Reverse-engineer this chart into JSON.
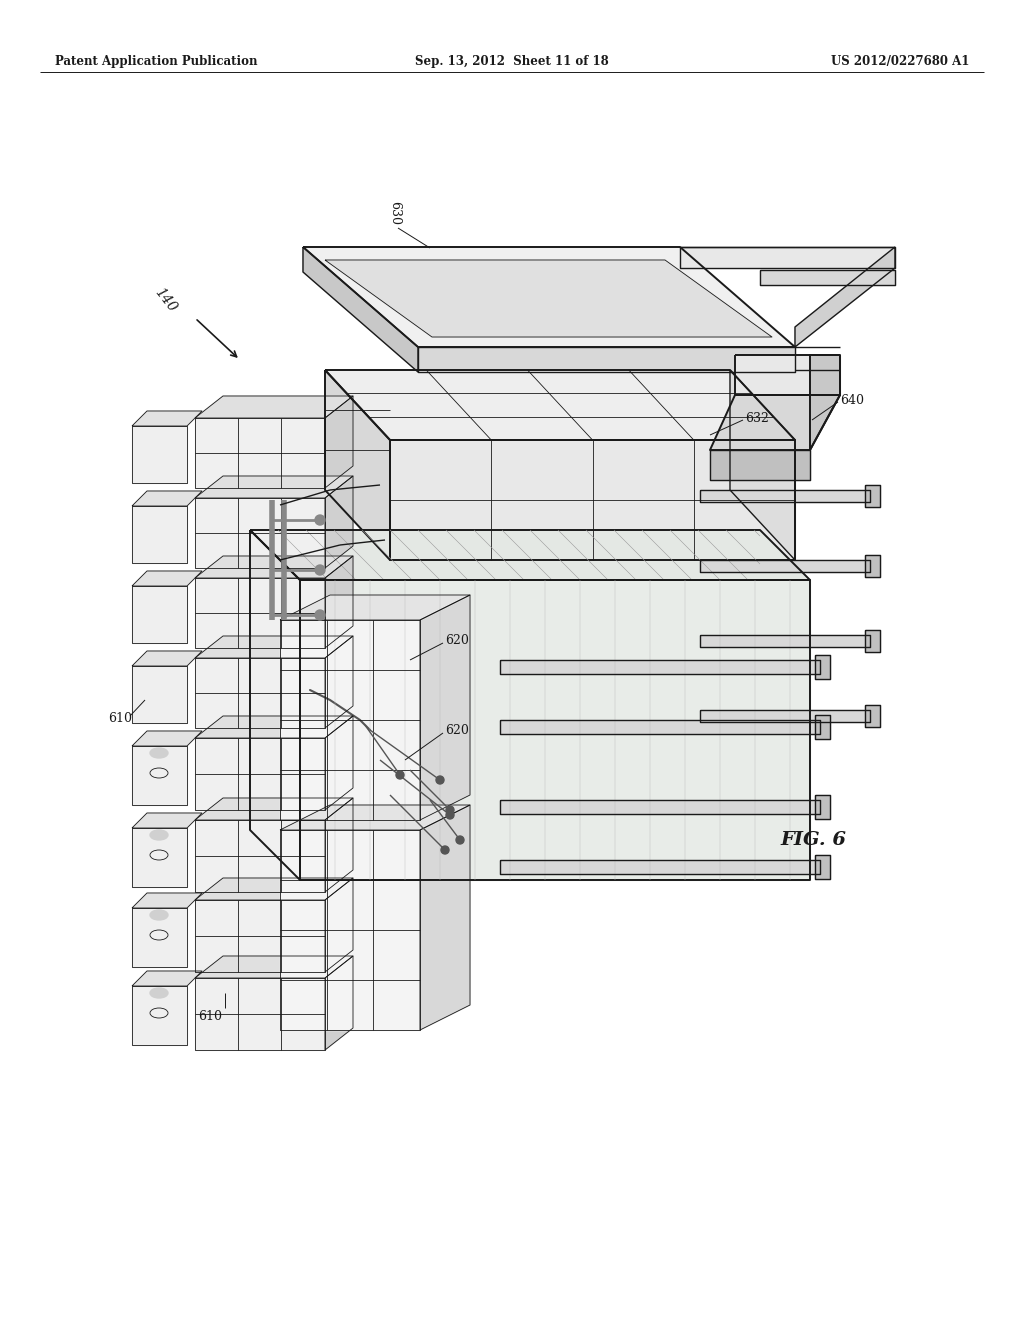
{
  "title_left": "Patent Application Publication",
  "title_center": "Sep. 13, 2012  Sheet 11 of 18",
  "title_right": "US 2012/0227680 A1",
  "fig_label": "FIG. 6",
  "ref_140": "140",
  "ref_610_top": "610",
  "ref_610_bot": "610",
  "ref_620a": "620",
  "ref_620b": "620",
  "ref_630": "630",
  "ref_632": "632",
  "ref_640": "640",
  "background": "#ffffff",
  "line_color": "#1a1a1a",
  "text_color": "#1a1a1a",
  "lw_thin": 0.6,
  "lw_med": 1.0,
  "lw_thick": 1.4
}
